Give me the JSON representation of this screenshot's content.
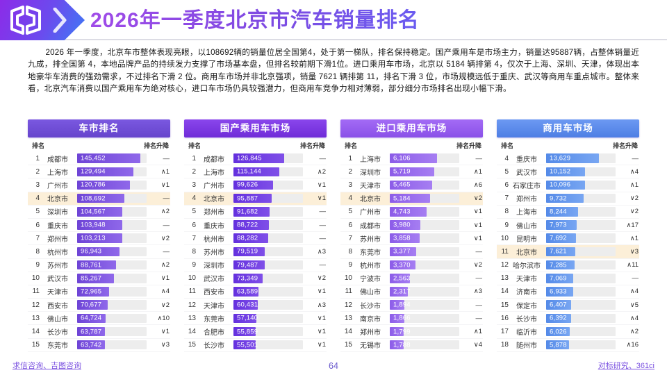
{
  "header": {
    "title": "2026年一季度北京市汽车销量排名"
  },
  "intro": "2026 年一季度，北京车市整体表现亮眼，以108692辆的销量位居全国第4，处于第一梯队，排名保持稳定。国产乘用车是市场主力，销量达95887辆，占整体销量近九成，排全国第 4，本地品牌产品的持续发力支撑了市场基本盘，但排名较前期下滑1位。进口乘用车市场，北京以 5184 辆排第 4，仅次于上海、深圳、天津，体现出本地豪华车消费的强劲需求，不过排名下滑 2 位。商用车市场并非北京强项，销量 7621 辆排第 11，排名下滑 3 位，市场规模远低于重庆、武汉等商用车重点城市。整体来看，北京汽车消费以国产乘用车为绝对核心，进口车市场仍具较强潜力，但商用车竞争力相对薄弱，部分细分市场排名出现小幅下滑。",
  "columns": {
    "rank": "排名",
    "change": "排名升降"
  },
  "theme": {
    "brand_gradient_from": "#8C2BE8",
    "brand_gradient_to": "#3D7AF5",
    "title_color": "#7D4AE2",
    "highlight_row_bg": "#FCEFD8",
    "track_color": "#EDEDED",
    "footer_link_color": "#7B52E0",
    "page_number_color": "#6A5ACD"
  },
  "chart_data": [
    {
      "type": "bar",
      "orientation": "horizontal",
      "title": "车市排名",
      "highlight_city": "北京市",
      "bar_axis_max": 160000,
      "colors": {
        "header_top": "#7A58E0",
        "header_bottom": "#6644CC",
        "bar_left": "#6E44D6",
        "bar_right": "#8F68EA"
      },
      "ranks": [
        1,
        2,
        3,
        4,
        5,
        6,
        7,
        8,
        9,
        10,
        11,
        12,
        13,
        14,
        15
      ],
      "categories": [
        "成都市",
        "上海市",
        "广州市",
        "北京市",
        "深圳市",
        "重庆市",
        "郑州市",
        "杭州市",
        "苏州市",
        "武汉市",
        "天津市",
        "西安市",
        "佛山市",
        "长沙市",
        "东莞市"
      ],
      "values": [
        145452,
        129494,
        120786,
        108692,
        104567,
        103948,
        103213,
        96943,
        88761,
        85267,
        72965,
        70677,
        64724,
        63787,
        63742
      ],
      "value_labels": [
        "145,452",
        "129,494",
        "120,786",
        "108,692",
        "104,567",
        "103,948",
        "103,213",
        "96,943",
        "88,761",
        "85,267",
        "72,965",
        "70,677",
        "64,724",
        "63,787",
        "63,742"
      ],
      "changes": [
        "—",
        "∧1",
        "∨1",
        "—",
        "∧2",
        "—",
        "∨2",
        "—",
        "∧2",
        "∨1",
        "∧4",
        "∨2",
        "∧10",
        "∨1",
        "∨3"
      ]
    },
    {
      "type": "bar",
      "orientation": "horizontal",
      "title": "国产乘用车市场",
      "highlight_city": "北京市",
      "bar_axis_max": 175000,
      "colors": {
        "header_top": "#8A46EC",
        "header_bottom": "#6F2CD8",
        "bar_left": "#6430DE",
        "bar_right": "#7F4FE8"
      },
      "ranks": [
        1,
        2,
        3,
        4,
        5,
        6,
        7,
        8,
        9,
        10,
        11,
        12,
        13,
        14,
        15
      ],
      "categories": [
        "成都市",
        "上海市",
        "广州市",
        "北京市",
        "郑州市",
        "重庆市",
        "杭州市",
        "苏州市",
        "深圳市",
        "武汉市",
        "西安市",
        "天津市",
        "东莞市",
        "合肥市",
        "长沙市"
      ],
      "values": [
        126845,
        115144,
        99626,
        95887,
        91682,
        88722,
        88282,
        79519,
        79487,
        73349,
        63589,
        60431,
        57140,
        55859,
        55501
      ],
      "value_labels": [
        "126,845",
        "115,144",
        "99,626",
        "95,887",
        "91,682",
        "88,722",
        "88,282",
        "79,519",
        "79,487",
        "73,349",
        "63,589",
        "60,431",
        "57,140",
        "55,859",
        "55,501"
      ],
      "changes": [
        "—",
        "∧2",
        "∨1",
        "∨1",
        "—",
        "—",
        "—",
        "∧3",
        "—",
        "∨2",
        "∨1",
        "∧3",
        "∨1",
        "∨1",
        "∨1"
      ]
    },
    {
      "type": "bar",
      "orientation": "horizontal",
      "title": "进口乘用车市场",
      "highlight_city": "北京市",
      "bar_axis_max": 9000,
      "colors": {
        "header_top": "#A36BF5",
        "header_bottom": "#8A50E8",
        "bar_left": "#8C5CE8",
        "bar_right": "#A67EF2"
      },
      "ranks": [
        1,
        2,
        3,
        4,
        5,
        6,
        7,
        8,
        9,
        10,
        11,
        12,
        13,
        14,
        15
      ],
      "categories": [
        "上海市",
        "深圳市",
        "天津市",
        "北京市",
        "广州市",
        "成都市",
        "苏州市",
        "东莞市",
        "杭州市",
        "宁波市",
        "佛山市",
        "长沙市",
        "南京市",
        "郑州市",
        "无锡市"
      ],
      "values": [
        6106,
        5719,
        5465,
        5184,
        4743,
        3980,
        3858,
        3377,
        3370,
        2563,
        2317,
        1894,
        1866,
        1799,
        1788
      ],
      "value_labels": [
        "6,106",
        "5,719",
        "5,465",
        "5,184",
        "4,743",
        "3,980",
        "3,858",
        "3,377",
        "3,370",
        "2,563",
        "2,317",
        "1,894",
        "1,866",
        "1,799",
        "1,788"
      ],
      "changes": [
        "—",
        "∧1",
        "∧6",
        "∨2",
        "∨1",
        "∨1",
        "∨1",
        "—",
        "∨2",
        "—",
        "∧3",
        "—",
        "—",
        "∧1",
        "∨4"
      ]
    },
    {
      "type": "bar",
      "orientation": "horizontal",
      "title": "商用车市场",
      "highlight_city": "北京市",
      "bar_axis_max": 18000,
      "colors": {
        "header_top": "#6C99F2",
        "header_bottom": "#4E7EE4",
        "bar_left": "#548AE8",
        "bar_right": "#78A6F2"
      },
      "ranks": [
        4,
        5,
        6,
        7,
        8,
        9,
        10,
        11,
        12,
        13,
        14,
        15,
        16,
        17,
        18
      ],
      "categories": [
        "重庆市",
        "武汉市",
        "石家庄市",
        "郑州市",
        "上海市",
        "佛山市",
        "昆明市",
        "北京市",
        "哈尔滨市",
        "天津市",
        "济南市",
        "保定市",
        "长沙市",
        "临沂市",
        "随州市"
      ],
      "values": [
        13629,
        10152,
        10096,
        9732,
        8244,
        7973,
        7692,
        7621,
        7285,
        7069,
        6933,
        6407,
        6392,
        6026,
        5878
      ],
      "value_labels": [
        "13,629",
        "10,152",
        "10,096",
        "9,732",
        "8,244",
        "7,973",
        "7,692",
        "7,621",
        "7,285",
        "7,069",
        "6,933",
        "6,407",
        "6,392",
        "6,026",
        "5,878"
      ],
      "changes": [
        "—",
        "∧4",
        "∧1",
        "∨2",
        "∨2",
        "∧17",
        "∧1",
        "∨3",
        "∧11",
        "—",
        "∧4",
        "∨5",
        "∧4",
        "∧2",
        "∧16"
      ]
    }
  ],
  "footer": {
    "left": "求信咨询、吉图咨询",
    "page": "64",
    "right": "对标研究、361ci"
  }
}
